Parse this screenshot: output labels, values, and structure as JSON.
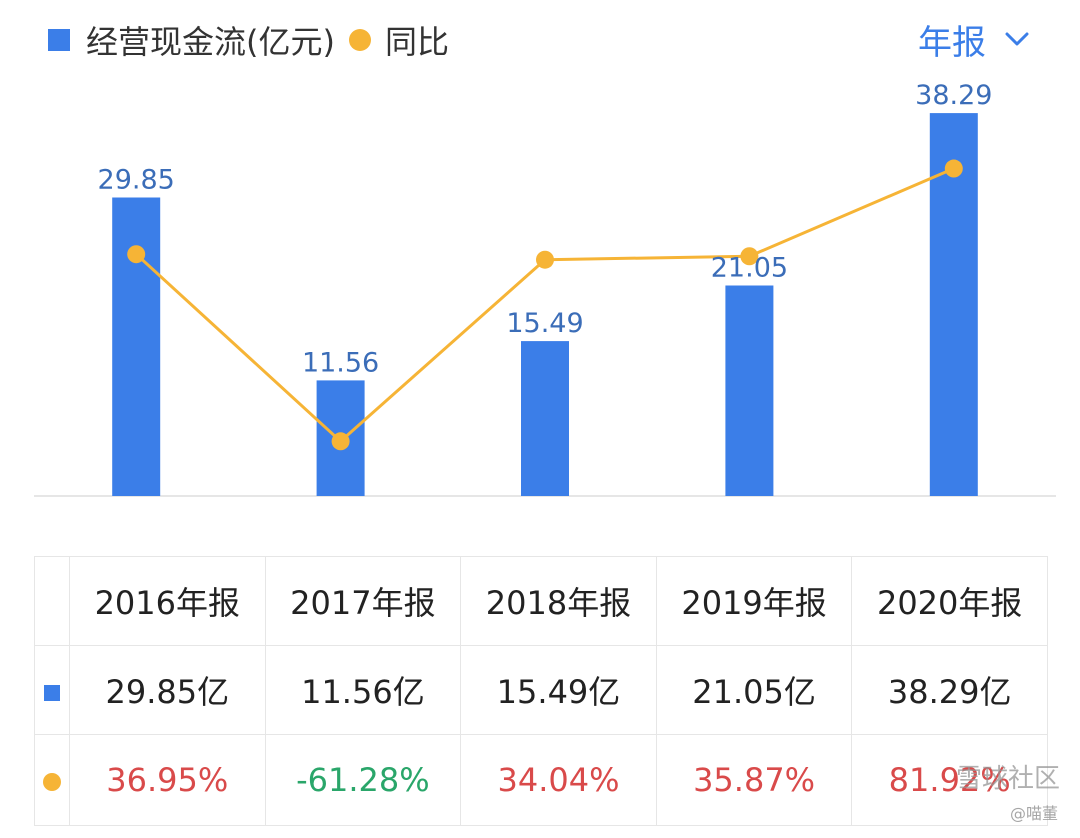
{
  "legend": {
    "bar_label": "经营现金流(亿元)",
    "line_label": "同比"
  },
  "period_selector": {
    "value": "年报"
  },
  "chart_data": {
    "type": "bar",
    "title": "",
    "categories": [
      "2016年报",
      "2017年报",
      "2018年报",
      "2019年报",
      "2020年报"
    ],
    "series": [
      {
        "name": "经营现金流(亿元)",
        "type": "bar",
        "values": [
          29.85,
          11.56,
          15.49,
          21.05,
          38.29
        ],
        "labels": [
          "29.85",
          "11.56",
          "15.49",
          "21.05",
          "38.29"
        ]
      },
      {
        "name": "同比",
        "type": "line",
        "values": [
          36.95,
          -61.28,
          34.04,
          35.87,
          81.92
        ]
      }
    ],
    "xlabel": "",
    "ylabel": "",
    "ylim": [
      0,
      40
    ],
    "y2lim": [
      -90,
      120
    ],
    "grid": false,
    "colors": {
      "bar": "#3b7ee8",
      "line": "#f6b436",
      "bar_label": "#3b6db8",
      "baseline": "#e6e6e6"
    }
  },
  "table": {
    "headers": [
      "2016年报",
      "2017年报",
      "2018年报",
      "2019年报",
      "2020年报"
    ],
    "value_row": [
      "29.85亿",
      "11.56亿",
      "15.49亿",
      "21.05亿",
      "38.29亿"
    ],
    "growth_row": [
      {
        "text": "36.95%",
        "sign": "pos"
      },
      {
        "text": "-61.28%",
        "sign": "neg"
      },
      {
        "text": "34.04%",
        "sign": "pos"
      },
      {
        "text": "35.87%",
        "sign": "pos"
      },
      {
        "text": "81.92%",
        "sign": "pos"
      }
    ],
    "colors": {
      "positive": "#d94a4a",
      "negative": "#2aa66a"
    }
  },
  "watermark": {
    "main": "雪球社区",
    "sub": "@喵董"
  }
}
